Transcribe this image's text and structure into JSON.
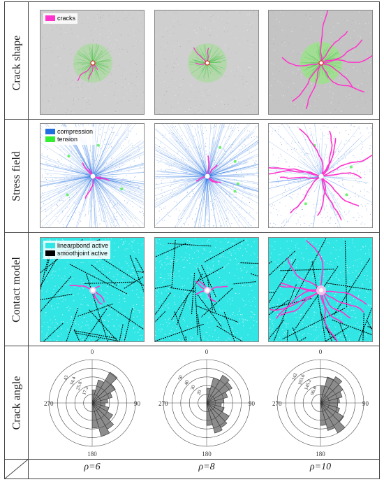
{
  "row_labels": [
    "Crack  shape",
    "Stress field",
    "Contact model",
    "Crack angle"
  ],
  "legends": {
    "crack_shape": [
      {
        "label": "cracks",
        "color": "#ff33cc"
      }
    ],
    "stress_field": [
      {
        "label": "compression",
        "color": "#1f6fe0"
      },
      {
        "label": "tension",
        "color": "#33ee33"
      }
    ],
    "contact_model": [
      {
        "label": "linearpbond active",
        "color": "#33e6e6"
      },
      {
        "label": "smoothjoint active",
        "color": "#000000"
      }
    ]
  },
  "columns": [
    {
      "label": "ρ=6"
    },
    {
      "label": "ρ=8"
    },
    {
      "label": "ρ=10"
    }
  ],
  "rose_axis_labels": {
    "top": "0",
    "bottom": "180",
    "left": "270",
    "right": "90"
  },
  "rose_rings": [
    [
      "43",
      "34.4",
      "25.8",
      "17.2"
    ],
    [
      "50",
      "40",
      "30",
      "20"
    ],
    [
      "242",
      "193.6",
      "145.2",
      "96.8"
    ]
  ],
  "colors": {
    "crack": "#ff33cc",
    "compression": "#1f6fe0",
    "tension": "#33ee33",
    "linearpbond": "#33e6e6",
    "smoothjoint": "#000000",
    "rose_fill": "#8c8c8c"
  }
}
